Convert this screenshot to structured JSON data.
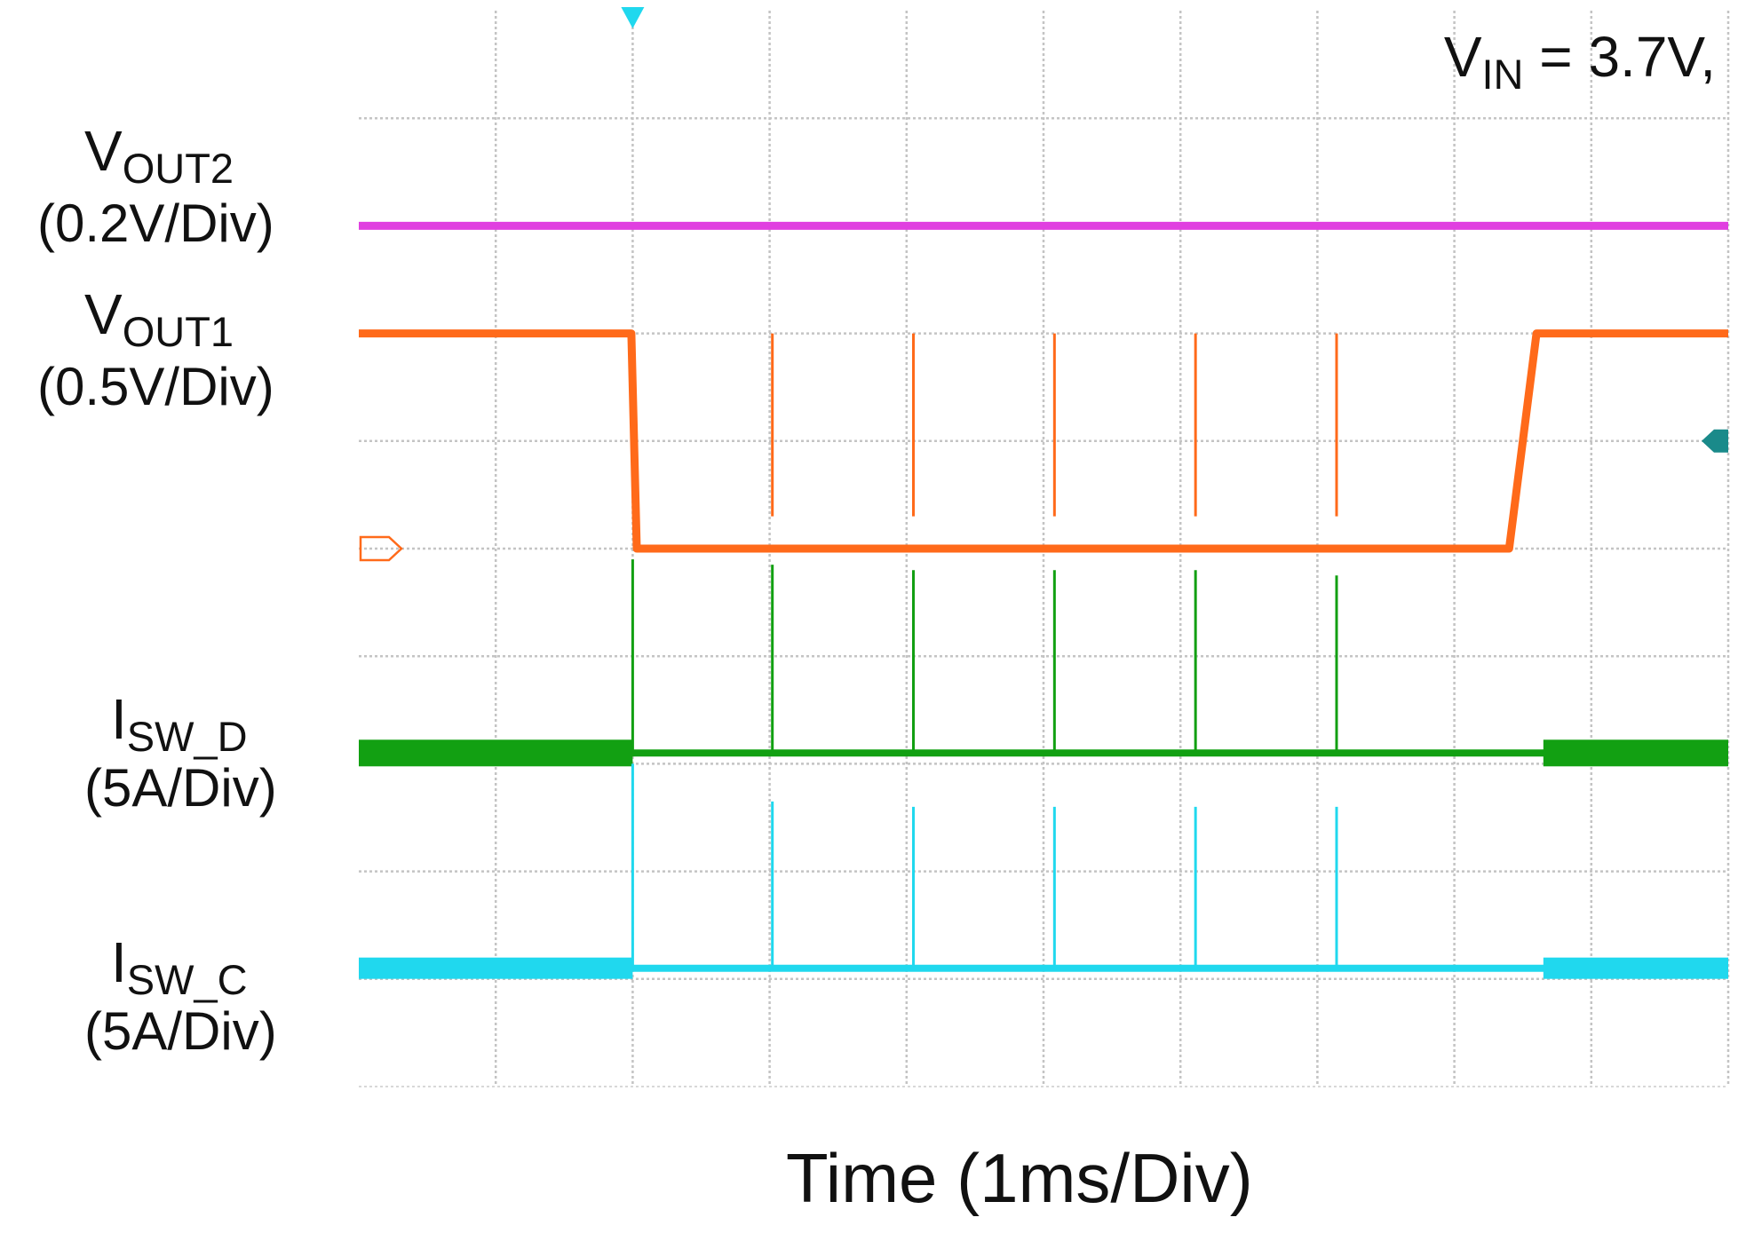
{
  "chart_data": {
    "type": "line",
    "title": "",
    "xlabel": "Time (1ms/Div)",
    "x_unit": "ms",
    "x_per_div": 1,
    "divisions": {
      "x": 10,
      "y": 10
    },
    "grid": true,
    "xlim": [
      0,
      10
    ],
    "annotation": {
      "prefix": "V",
      "subscript": "IN",
      "text": " = 3.7V,"
    },
    "trigger_marker_x": 2,
    "series": [
      {
        "id": "vout2",
        "label_prefix": "V",
        "label_subscript": "OUT2",
        "scale": "(0.2V/Div)",
        "color": "#e040e0",
        "points": [
          [
            0,
            2.0
          ],
          [
            10,
            2.0
          ]
        ]
      },
      {
        "id": "vout1",
        "label_prefix": "V",
        "label_subscript": "OUT1",
        "scale": "(0.5V/Div)",
        "color": "#ff6a1a",
        "points": [
          [
            0,
            3.0
          ],
          [
            1.99,
            3.0
          ],
          [
            2.03,
            5.0
          ],
          [
            8.4,
            5.0
          ],
          [
            8.6,
            3.0
          ],
          [
            10,
            3.0
          ]
        ],
        "spikes": [
          {
            "x": 3.02,
            "peak": 4.7
          },
          {
            "x": 4.05,
            "peak": 4.7
          },
          {
            "x": 5.08,
            "peak": 4.7
          },
          {
            "x": 6.11,
            "peak": 4.7
          },
          {
            "x": 7.14,
            "peak": 4.7
          }
        ]
      },
      {
        "id": "isw_d",
        "label_prefix": "I",
        "label_subscript": "SW_D",
        "scale": "(5A/Div)",
        "color": "#12a012",
        "points": [
          [
            0,
            6.9
          ],
          [
            10,
            6.9
          ]
        ],
        "spikes": [
          {
            "x": 2.0,
            "peak": 5.1
          },
          {
            "x": 3.02,
            "peak": 5.15
          },
          {
            "x": 4.05,
            "peak": 5.2
          },
          {
            "x": 5.08,
            "peak": 5.2
          },
          {
            "x": 6.11,
            "peak": 5.2
          },
          {
            "x": 7.14,
            "peak": 5.25
          }
        ]
      },
      {
        "id": "isw_c",
        "label_prefix": "I",
        "label_subscript": "SW_C",
        "scale": "(5A/Div)",
        "color": "#20d8ee",
        "points": [
          [
            0,
            8.9
          ],
          [
            10,
            8.9
          ]
        ],
        "spikes": [
          {
            "x": 2.0,
            "peak": 7.0
          },
          {
            "x": 3.02,
            "peak": 7.35
          },
          {
            "x": 4.05,
            "peak": 7.4
          },
          {
            "x": 5.08,
            "peak": 7.4
          },
          {
            "x": 6.11,
            "peak": 7.4
          },
          {
            "x": 7.14,
            "peak": 7.4
          }
        ]
      }
    ],
    "ref_marker": {
      "color": "#1a8a8a",
      "y": 4.0
    }
  }
}
